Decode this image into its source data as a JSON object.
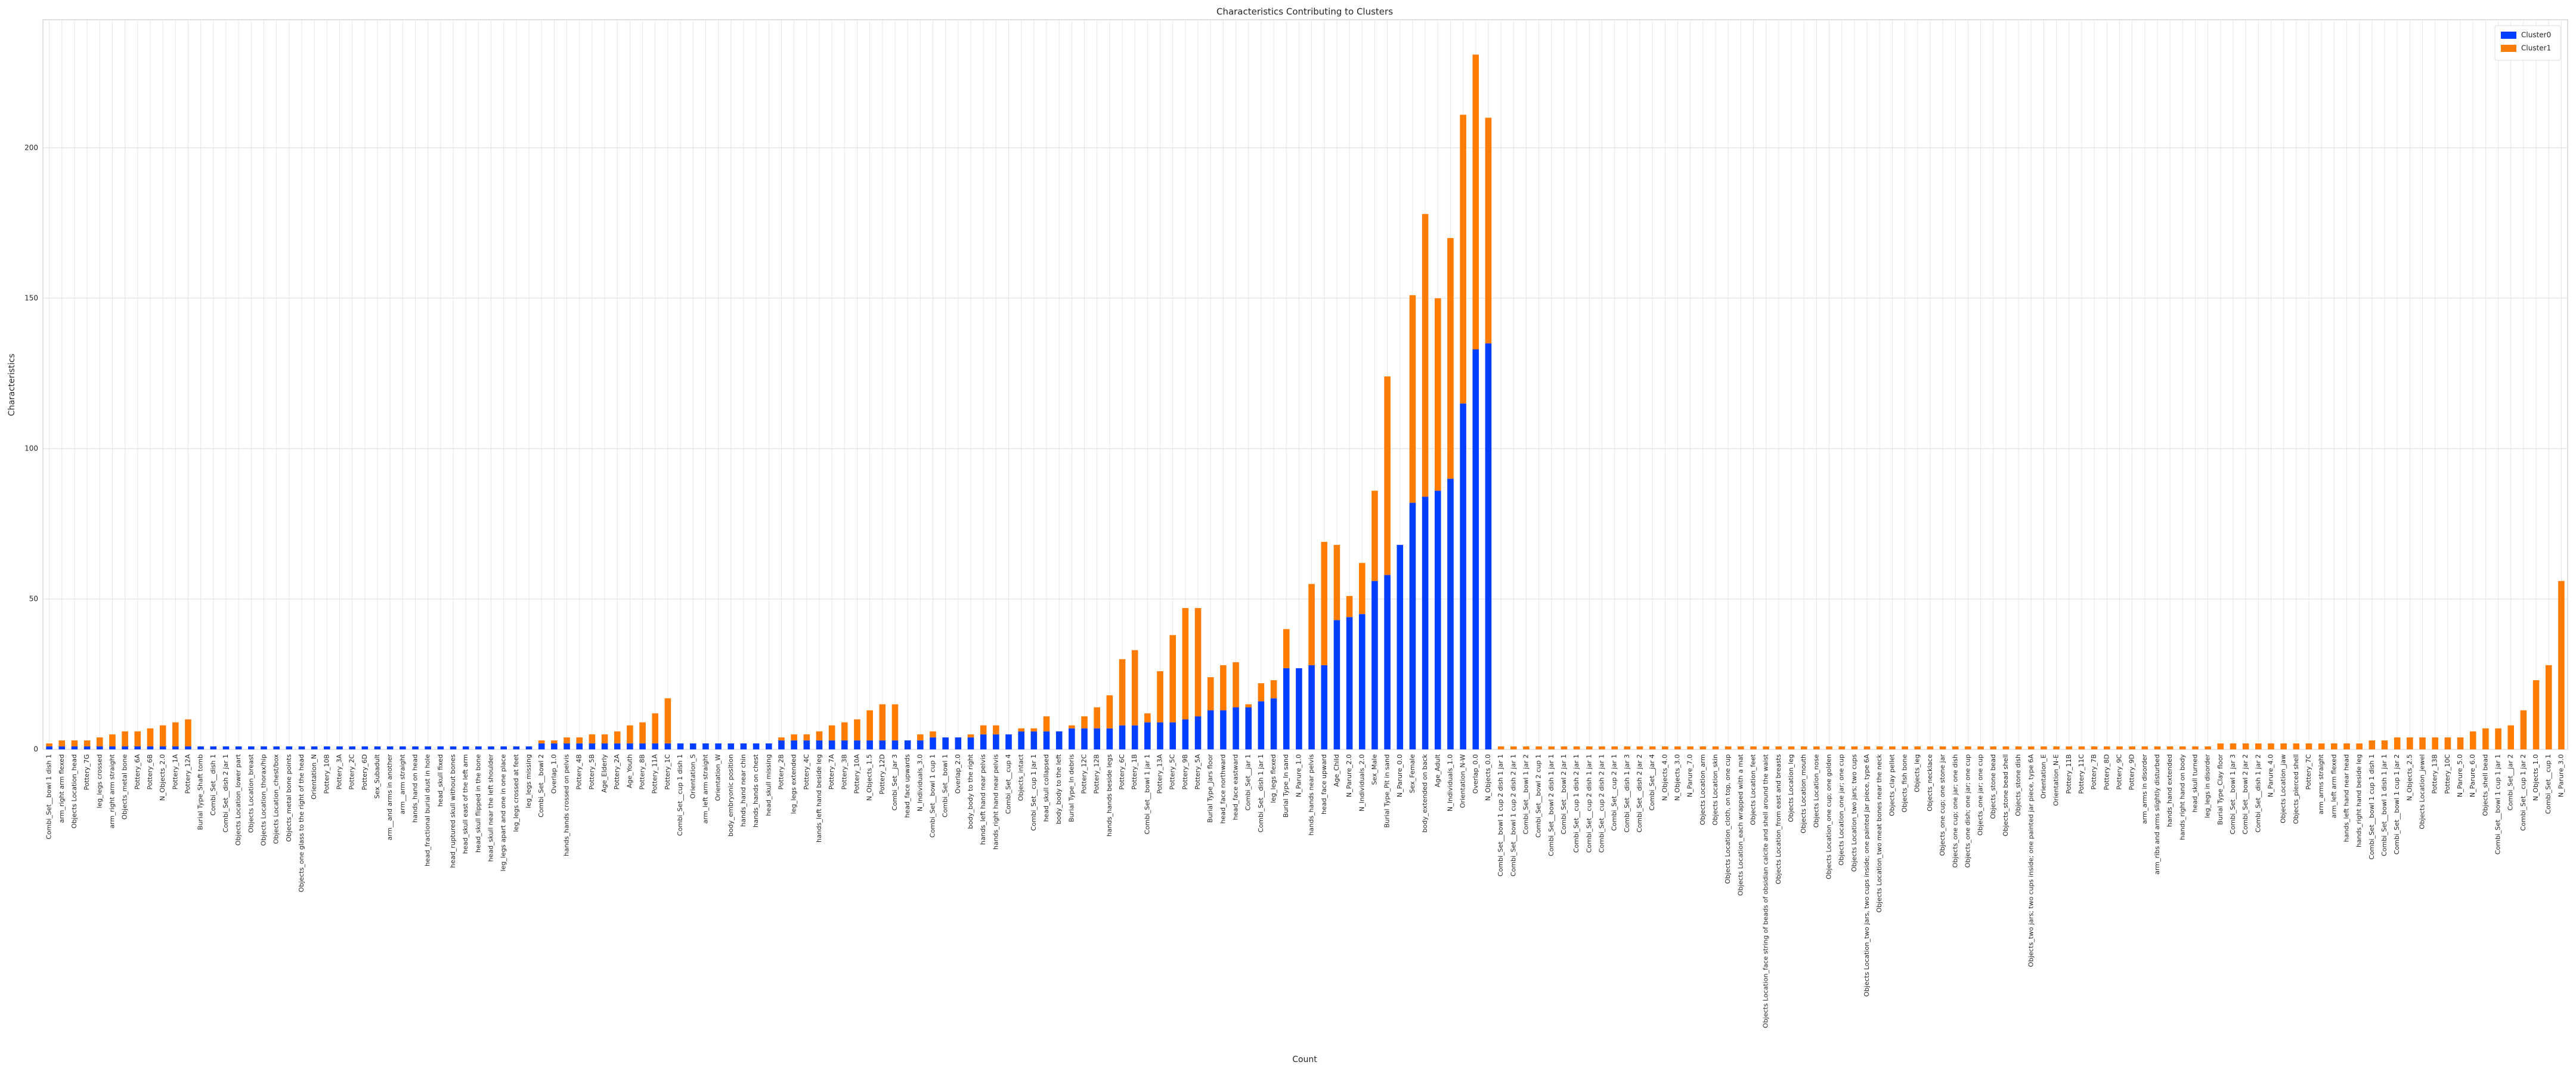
{
  "chart_data": {
    "type": "bar",
    "stacked": true,
    "title": "Characteristics Contributing to Clusters",
    "xlabel": "Count",
    "ylabel": "Characteristics",
    "grid": true,
    "legend": "upper right",
    "ylim": [
      0,
      242.6
    ],
    "yticks": [
      0,
      50,
      100,
      150,
      200
    ],
    "categories": [
      "Combi_Set__bowl 1 dish 1",
      "arm_right arm flexed",
      "Objects Location_head",
      "Pottery_7G",
      "leg_legs crossed",
      "arm_right arm straight",
      "Objects_metal bone",
      "Pottery_6A",
      "Pottery_6B",
      "N_Objects_2.0",
      "Pottery_1A",
      "Pottery_12A",
      "Burial Type_Shaft tomb",
      "Combi_Set__dish 1",
      "Combi_Set__dish 2 jar 1",
      "Objects Location_lower part",
      "Objects Location_breast",
      "Objects Location_thorax/hip",
      "Objects Location_chest/box",
      "Objects_metal bone points",
      "Objects_one glass to the right of the head",
      "Orientation_N",
      "Pottery_10B",
      "Pottery_3A",
      "Pottery_2C",
      "Pottery_6D",
      "Sex_Subadult",
      "arm__and arms in another",
      "arm__arm straight",
      "hands_hand on head",
      "head_fractional burial dust in hole",
      "head_skull fixed",
      "head_ruptured skull without bones",
      "head_skull east of the left arm",
      "head_skull flipped in the bone",
      "head_skull near the left shoulder",
      "leg_legs apart and one in one place",
      "leg_legs crossed at feet",
      "leg_legs missing",
      "Combi_Set__bowl 2",
      "Overlap_1.0",
      "hands_hands crossed on pelvis",
      "Pottery_4B",
      "Pottery_5B",
      "Age_Elderly",
      "Pottery_2A",
      "Age_Youth",
      "Pottery_8B",
      "Pottery_11A",
      "Pottery_1C",
      "Combi_Set__cup 1 dish 1",
      "Orientation_S",
      "arm_left arm straight",
      "Orientation_W",
      "body_embryonic position",
      "hands_hand near chin",
      "hands_hands on chest",
      "head_skull missing",
      "Pottery_2B",
      "leg_legs extended",
      "Pottery_4C",
      "hands_left hand beside leg",
      "Pottery_7A",
      "Pottery_3B",
      "Pottery_10A",
      "N_Objects_1.5",
      "Pottery_12D",
      "Combi_Set__jar 3",
      "head_face upwards",
      "N_Individuals_3.0",
      "Combi_Set__bowl 1 cup 1",
      "Combi_Set__bowl 1",
      "Overlap_2.0",
      "body_body to the right",
      "hands_left hand near pelvis",
      "hands_right hand near pelvis",
      "Combi_Set__cup 4",
      "Objects_intact",
      "Combi_Set__cup 1 jar 1",
      "head_skull collapsed",
      "body_body to the left",
      "Burial Type_In debris",
      "Pottery_12C",
      "Pottery_12B",
      "hands_hands beside legs",
      "Pottery_6C",
      "Pottery_1B",
      "Combi_Set__bowl 1 jar 1",
      "Pottery_13A",
      "Pottery_5C",
      "Pottery_9B",
      "Pottery_5A",
      "Burial Type_Jars floor",
      "head_face northward",
      "head_face eastward",
      "Combi_Set__jar 1",
      "Combi_Set__dish 1 jar 1",
      "leg_legs flexed",
      "Burial Type_In sand",
      "N_Parure_1.0",
      "hands_hands near pelvis",
      "head_face upward",
      "Age_Child",
      "N_Parure_2.0",
      "N_Individuals_2.0",
      "Sex_Male",
      "Burial Type_Pit in sand",
      "N_Parure_0.0",
      "Sex_Female",
      "body_extended on back",
      "Age_Adult",
      "N_Individuals_1.0",
      "Orientation_N-W",
      "Overlap_0.0",
      "N_Objects_0.0",
      "Combi_Set__bowl 1 cup 2 dish 1 jar 1",
      "Combi_Set__bowl 1 cup 2 dish 2 jar 1",
      "Combi_Set__bowl 1 jar 2",
      "Combi_Set__bowl 2 cup 1",
      "Combi_Set__bowl 2 dish 1 jar 1",
      "Combi_Set__bowl 2 jar 1",
      "Combi_Set__cup 1 dish 2 jar 1",
      "Combi_Set__cup 2 dish 1 jar 1",
      "Combi_Set__cup 2 dish 2 jar 1",
      "Combi_Set__cup 2 jar 1",
      "Combi_Set__dish 1 jar 3",
      "Combi_Set__dish 2 jar 2",
      "Combi_Set__jar 4",
      "N_Objects_4.0",
      "N_Objects_3.0",
      "N_Parure_7.0",
      "Objects Location_arm",
      "Objects Location_skin",
      "Objects Location_cloth, on top, one cup",
      "Objects Location_each wrapped with a mat",
      "Objects Location_feet",
      "Objects Location_face string of beads of obsidian calcite and shell around the waist",
      "Objects Location_from east and breasts",
      "Objects Location_leg",
      "Objects Location_mouth",
      "Objects Location_nose",
      "Objects Location_one cup; one golden",
      "Objects Location_one jar; one cup",
      "Objects Location_two jars; two cups",
      "Objects Location_two jars, two cups inside; one painted jar piece, type 6A",
      "Objects Location_two meat bones near the neck",
      "Objects_clay pellet",
      "Objects_fish bone",
      "Objects_leg",
      "Objects_necklace",
      "Objects_one cup; one stone jar",
      "Objects_one cup; one jar; one dish",
      "Objects_one dish; one jar; one cup",
      "Objects_one jar; one cup",
      "Objects_stone bead",
      "Objects_stone bead shell",
      "Objects_stone dish",
      "Objects_two jars; two cups inside; one painted jar piece, type 6A",
      "Orientation_E",
      "Orientation_N-E",
      "Pottery_11B",
      "Pottery_11C",
      "Pottery_7B",
      "Pottery_8D",
      "Pottery_9C",
      "Pottery_9D",
      "arm_arms in disorder",
      "arm_ribs and arms slightly disturbed",
      "hands_hand extended",
      "hands_right hand on body",
      "head_skull turned",
      "leg_legs in disorder",
      "Burial Type_Clay floor",
      "Combi_Set__bowl 1 jar 3",
      "Combi_Set__bowl 2 jar 2",
      "Combi_Set__dish 1 jar 2",
      "N_Parure_4.0",
      "Objects Location_jaw",
      "Objects_pierced shell",
      "Pottery_7C",
      "arm_arms straight",
      "arm_left arm flexed",
      "hands_left hand near head",
      "hands_right hand beside leg",
      "Combi_Set__bowl 1 cup 1 dish 1",
      "Combi_Set__bowl 1 dish 1 jar 1",
      "Combi_Set__bowl 1 cup 1 jar 2",
      "N_Objects_2.5",
      "Objects Location_jewel",
      "Pottery_13B",
      "Pottery_10C",
      "N_Parure_5.0",
      "N_Parure_6.0",
      "Objects_shell bead",
      "Combi_Set__bowl 1 cup 1 jar 1",
      "Combi_Set__jar 2",
      "Combi_Set__cup 1 jar 2",
      "N_Objects_1.0",
      "Combi_Set__cup 1",
      "N_Parure_3.0"
    ],
    "series": [
      {
        "name": "Cluster0",
        "color": "#023eff",
        "values": [
          1,
          1,
          1,
          1,
          1,
          1,
          1,
          1,
          1,
          1,
          1,
          1,
          1,
          1,
          1,
          1,
          1,
          1,
          1,
          1,
          1,
          1,
          1,
          1,
          1,
          1,
          1,
          1,
          1,
          1,
          1,
          1,
          1,
          1,
          1,
          1,
          1,
          1,
          1,
          2,
          2,
          2,
          2,
          2,
          2,
          2,
          2,
          2,
          2,
          2,
          2,
          2,
          2,
          2,
          2,
          2,
          2,
          2,
          3,
          3,
          3,
          3,
          3,
          3,
          3,
          3,
          3,
          3,
          3,
          3,
          4,
          4,
          4,
          4,
          5,
          5,
          5,
          6,
          6,
          6,
          6,
          7,
          7,
          7,
          7,
          8,
          8,
          9,
          9,
          9,
          10,
          11,
          13,
          13,
          14,
          14,
          16,
          17,
          27,
          27,
          28,
          28,
          43,
          44,
          45,
          56,
          58,
          68,
          82,
          84,
          86,
          90,
          115,
          133,
          135,
          0,
          0,
          0,
          0,
          0,
          0,
          0,
          0,
          0,
          0,
          0,
          0,
          0,
          0,
          0,
          0,
          0,
          0,
          0,
          0,
          0,
          0,
          0,
          0,
          0,
          0,
          0,
          0,
          0,
          0,
          0,
          0,
          0,
          0,
          0,
          0,
          0,
          0,
          0,
          0,
          0,
          0,
          0,
          0,
          0,
          0,
          0,
          0,
          0,
          0,
          0,
          0,
          0,
          0,
          0,
          0,
          0,
          0,
          0,
          0,
          0,
          0,
          0,
          0,
          0,
          0,
          0,
          0,
          0,
          0,
          0,
          0,
          0,
          0,
          0,
          0,
          0,
          0,
          0,
          0,
          0,
          0,
          0,
          0,
          0
        ]
      },
      {
        "name": "Cluster1",
        "color": "#ff7c00",
        "values": [
          1,
          2,
          2,
          2,
          3,
          4,
          5,
          5,
          6,
          7,
          8,
          9,
          0,
          0,
          0,
          0,
          0,
          0,
          0,
          0,
          0,
          0,
          0,
          0,
          0,
          0,
          0,
          0,
          0,
          0,
          0,
          0,
          0,
          0,
          0,
          0,
          0,
          0,
          0,
          1,
          1,
          2,
          2,
          3,
          3,
          4,
          6,
          7,
          10,
          15,
          0,
          0,
          0,
          0,
          0,
          0,
          0,
          0,
          1,
          2,
          2,
          3,
          5,
          6,
          7,
          10,
          12,
          12,
          0,
          2,
          2,
          0,
          0,
          1,
          3,
          3,
          0,
          1,
          1,
          5,
          0,
          1,
          4,
          7,
          11,
          22,
          25,
          3,
          17,
          29,
          37,
          36,
          11,
          15,
          15,
          1,
          6,
          6,
          13,
          0,
          27,
          41,
          25,
          7,
          17,
          30,
          66,
          0,
          69,
          94,
          64,
          80,
          96,
          98,
          75,
          1,
          1,
          1,
          1,
          1,
          1,
          1,
          1,
          1,
          1,
          1,
          1,
          1,
          1,
          1,
          1,
          1,
          1,
          1,
          1,
          1,
          1,
          1,
          1,
          1,
          1,
          1,
          1,
          1,
          1,
          1,
          1,
          1,
          1,
          1,
          1,
          1,
          1,
          1,
          1,
          1,
          1,
          1,
          1,
          1,
          1,
          1,
          1,
          1,
          1,
          1,
          1,
          1,
          1,
          1,
          1,
          1,
          2,
          2,
          2,
          2,
          2,
          2,
          2,
          2,
          2,
          2,
          2,
          2,
          3,
          3,
          4,
          4,
          4,
          4,
          4,
          4,
          6,
          7,
          7,
          8,
          13,
          23,
          28,
          56
        ]
      }
    ]
  }
}
